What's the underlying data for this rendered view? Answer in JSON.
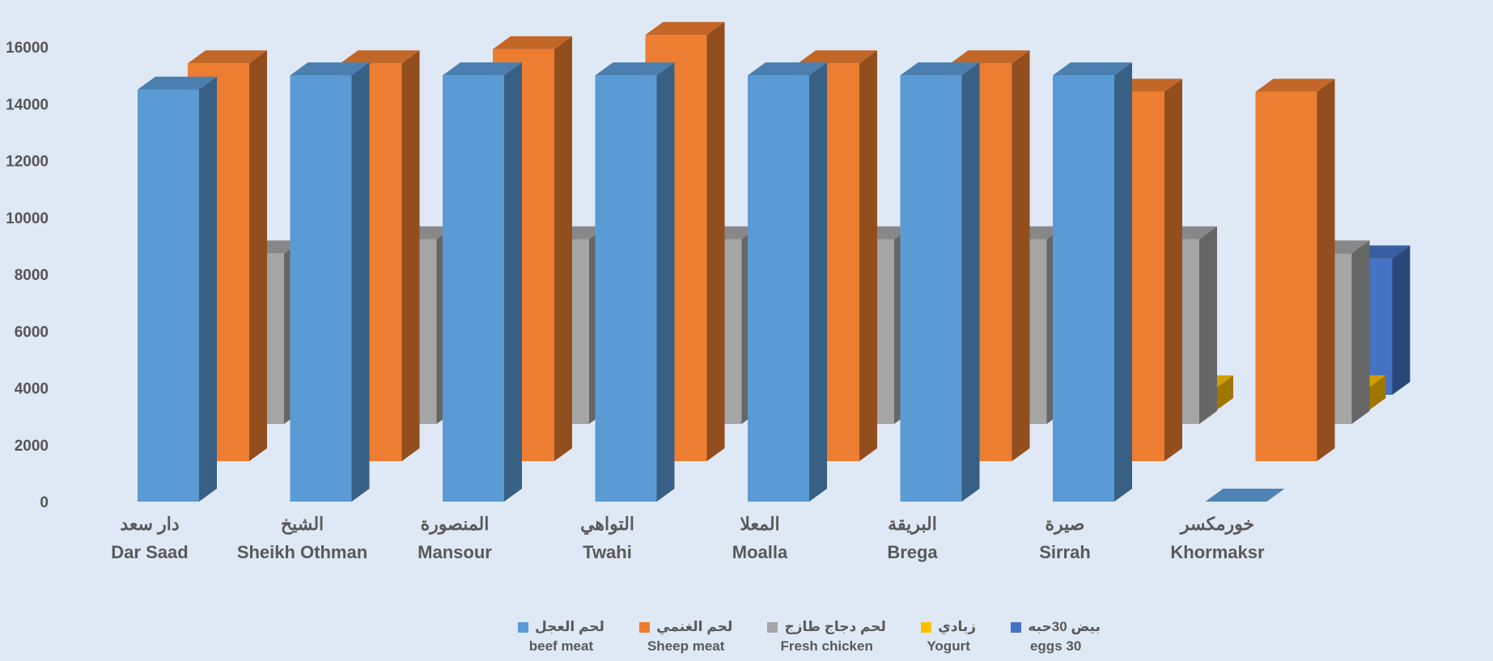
{
  "chart_data": {
    "type": "bar",
    "style": "3d-clustered-column",
    "ylim": [
      0,
      16000
    ],
    "yticks": [
      "0",
      "2000",
      "4000",
      "6000",
      "8000",
      "10000",
      "12000",
      "14000",
      "16000"
    ],
    "categories": [
      {
        "ar": "دار سعد",
        "en": "Dar Saad"
      },
      {
        "ar": "الشيخ",
        "en": "Sheikh Othman"
      },
      {
        "ar": "المنصورة",
        "en": "Mansour"
      },
      {
        "ar": "التواهي",
        "en": "Twahi"
      },
      {
        "ar": "المعلا",
        "en": "Moalla"
      },
      {
        "ar": "البريقة",
        "en": "Brega"
      },
      {
        "ar": "صيرة",
        "en": "Sirrah"
      },
      {
        "ar": "خورمكسر",
        "en": "Khormaksr"
      }
    ],
    "series": [
      {
        "name_ar": "لحم العجل",
        "name_en": "beef meat",
        "color": "#5b9bd5",
        "values": [
          14500,
          15000,
          15000,
          15000,
          15000,
          15000,
          15000,
          0
        ]
      },
      {
        "name_ar": "لحم الغنمي",
        "name_en": "Sheep meat",
        "color": "#ed7d31",
        "values": [
          14000,
          14000,
          14500,
          15000,
          14000,
          14000,
          13000,
          13000
        ]
      },
      {
        "name_ar": "لحم دجاج طازج",
        "name_en": "Fresh chicken",
        "color": "#a5a5a5",
        "values": [
          6000,
          6500,
          6500,
          6500,
          6500,
          6500,
          6500,
          6000
        ]
      },
      {
        "name_ar": "زبادي",
        "name_en": "Yogurt",
        "color": "#ffc000",
        "values": [
          0,
          0,
          0,
          0,
          0,
          0,
          800,
          800
        ]
      },
      {
        "name_ar": "بيض 30حبه",
        "name_en": "eggs 30",
        "color": "#4472c4",
        "values": [
          0,
          0,
          0,
          0,
          0,
          0,
          0,
          4800
        ]
      }
    ],
    "legend_position": "bottom",
    "grid": false
  }
}
